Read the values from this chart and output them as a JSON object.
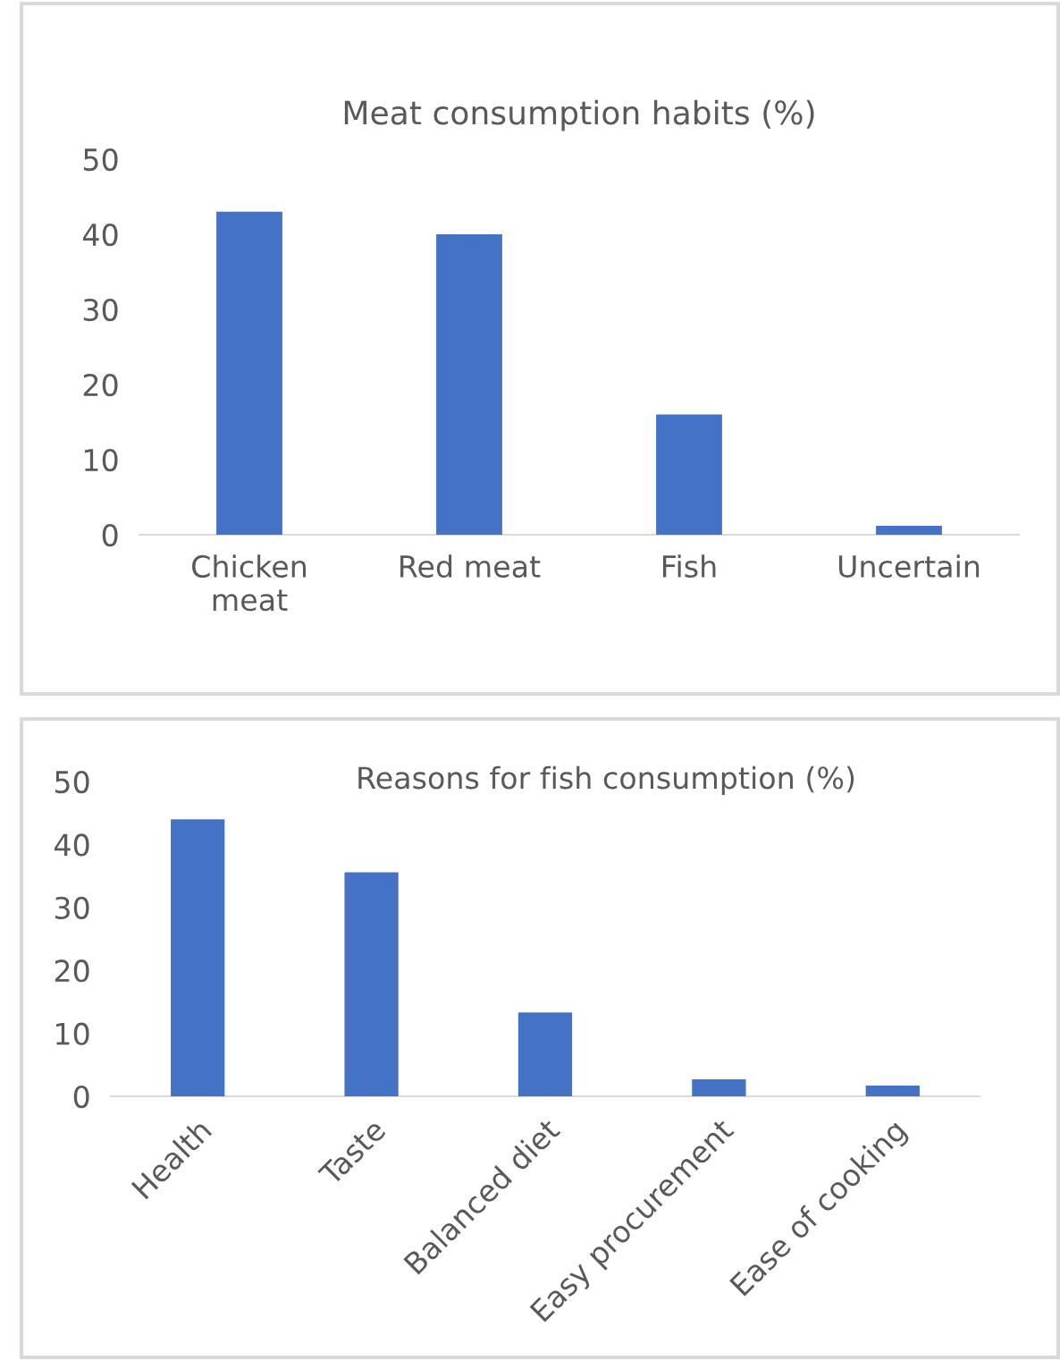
{
  "chart_data": [
    {
      "type": "bar",
      "title": "Meat consumption habits (%)",
      "categories": [
        "Chicken\nmeat",
        "Red meat",
        "Fish",
        "Uncertain"
      ],
      "values": [
        43,
        40,
        16,
        1.2
      ],
      "color": "#4472c4",
      "ylim": [
        0,
        50
      ],
      "yticks": [
        0,
        10,
        20,
        30,
        40,
        50
      ],
      "grid": false
    },
    {
      "type": "bar",
      "title": "Reasons for fish consumption (%)",
      "categories": [
        "Health",
        "Taste",
        "Balanced diet",
        "Easy procurement",
        "Ease of cooking"
      ],
      "values": [
        44,
        35.6,
        13.3,
        2.7,
        1.7
      ],
      "color": "#4472c4",
      "ylim": [
        0,
        50
      ],
      "yticks": [
        0,
        10,
        20,
        30,
        40,
        50
      ],
      "grid": false
    }
  ]
}
